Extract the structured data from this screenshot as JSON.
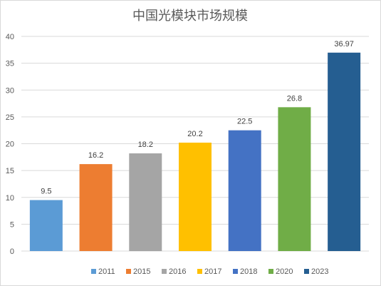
{
  "chart_data": {
    "type": "bar",
    "title": "中国光模块市场规模",
    "xlabel": "",
    "ylabel": "",
    "categories": [
      "2011",
      "2015",
      "2016",
      "2017",
      "2018",
      "2020",
      "2023"
    ],
    "values": [
      9.5,
      16.2,
      18.2,
      20.2,
      22.5,
      26.8,
      36.97
    ],
    "value_labels": [
      "9.5",
      "16.2",
      "18.2",
      "20.2",
      "22.5",
      "26.8",
      "36.97"
    ],
    "colors": [
      "#5b9bd5",
      "#ed7d31",
      "#a5a5a5",
      "#ffc000",
      "#4472c4",
      "#70ad47",
      "#255e91"
    ],
    "ylim": [
      0,
      40
    ],
    "yticks": [
      "0",
      "5",
      "10",
      "15",
      "20",
      "25",
      "30",
      "35",
      "40"
    ],
    "ytick_values": [
      0,
      5,
      10,
      15,
      20,
      25,
      30,
      35,
      40
    ],
    "grid": true,
    "legend_position": "bottom"
  }
}
